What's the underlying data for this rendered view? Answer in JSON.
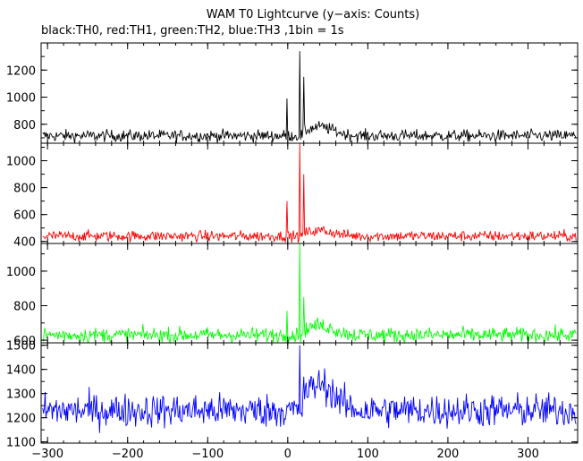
{
  "chart_data": {
    "type": "line",
    "title": "WAM T0 Lightcurve (y−axis: Counts)",
    "subtitle": "black:TH0, red:TH1, green:TH2, blue:TH3 ,1bin = 1s",
    "xlim": [
      -308,
      362
    ],
    "x_ticks": [
      -300,
      -200,
      -100,
      0,
      100,
      200,
      300
    ],
    "x_tick_labels": [
      "−300",
      "−200",
      "−100",
      "0",
      "100",
      "200",
      "300"
    ],
    "bin_seconds": 1,
    "panels": [
      {
        "name": "TH0",
        "color": "#000000",
        "ylim": [
          660,
          1400
        ],
        "y_ticks": [
          800,
          1000,
          1200
        ],
        "y_tick_labels": [
          "800",
          "1000",
          "1200"
        ],
        "baseline": 715,
        "noise": 22,
        "features": [
          {
            "x": -1,
            "value": 990
          },
          {
            "x": 15,
            "value": 1340
          },
          {
            "x": 20,
            "value": 1150
          },
          {
            "x": 40,
            "value": 780
          }
        ]
      },
      {
        "name": "TH1",
        "color": "#ff0000",
        "ylim": [
          385,
          1130
        ],
        "y_ticks": [
          400,
          600,
          800,
          1000
        ],
        "y_tick_labels": [
          "400",
          "600",
          "800",
          "1000"
        ],
        "baseline": 440,
        "noise": 20,
        "features": [
          {
            "x": -1,
            "value": 700
          },
          {
            "x": 15,
            "value": 1130
          },
          {
            "x": 20,
            "value": 900
          },
          {
            "x": 45,
            "value": 510
          }
        ]
      },
      {
        "name": "TH2",
        "color": "#00ff00",
        "ylim": [
          585,
          1160
        ],
        "y_ticks": [
          600,
          800,
          1000
        ],
        "y_tick_labels": [
          "600",
          "800",
          "1000"
        ],
        "baseline": 630,
        "noise": 22,
        "features": [
          {
            "x": -1,
            "value": 770
          },
          {
            "x": 15,
            "value": 1160
          },
          {
            "x": 20,
            "value": 850
          },
          {
            "x": 45,
            "value": 660
          }
        ]
      },
      {
        "name": "TH3",
        "color": "#0000ff",
        "ylim": [
          1095,
          1510
        ],
        "y_ticks": [
          1100,
          1200,
          1300,
          1400,
          1500
        ],
        "y_tick_labels": [
          "1100",
          "1200",
          "1300",
          "1400",
          "1500"
        ],
        "baseline": 1230,
        "noise": 35,
        "features": [
          {
            "x": 15,
            "value": 1500
          },
          {
            "x": 20,
            "value": 1370
          }
        ]
      }
    ]
  }
}
